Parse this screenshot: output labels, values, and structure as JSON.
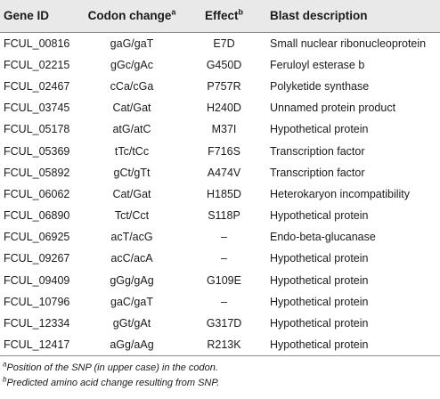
{
  "header": {
    "gene_id": "Gene ID",
    "codon_change": "Codon change",
    "codon_change_sup": "a",
    "effect": "Effect",
    "effect_sup": "b",
    "blast_description": "Blast description"
  },
  "rows": [
    {
      "gene_id": "FCUL_00816",
      "codon": "gaG/gaT",
      "effect": "E7D",
      "blast": "Small nuclear ribonucleoprotein"
    },
    {
      "gene_id": "FCUL_02215",
      "codon": "gGc/gAc",
      "effect": "G450D",
      "blast": "Feruloyl esterase b"
    },
    {
      "gene_id": "FCUL_02467",
      "codon": "cCa/cGa",
      "effect": "P757R",
      "blast": "Polyketide synthase"
    },
    {
      "gene_id": "FCUL_03745",
      "codon": "Cat/Gat",
      "effect": "H240D",
      "blast": "Unnamed protein product"
    },
    {
      "gene_id": "FCUL_05178",
      "codon": "atG/atC",
      "effect": "M37I",
      "blast": "Hypothetical protein"
    },
    {
      "gene_id": "FCUL_05369",
      "codon": "tTc/tCc",
      "effect": "F716S",
      "blast": "Transcription factor"
    },
    {
      "gene_id": "FCUL_05892",
      "codon": "gCt/gTt",
      "effect": "A474V",
      "blast": "Transcription factor"
    },
    {
      "gene_id": "FCUL_06062",
      "codon": "Cat/Gat",
      "effect": "H185D",
      "blast": "Heterokaryon incompatibility"
    },
    {
      "gene_id": "FCUL_06890",
      "codon": "Tct/Cct",
      "effect": "S118P",
      "blast": "Hypothetical protein"
    },
    {
      "gene_id": "FCUL_06925",
      "codon": "acT/acG",
      "effect": "–",
      "blast": "Endo-beta-glucanase"
    },
    {
      "gene_id": "FCUL_09267",
      "codon": "acC/acA",
      "effect": "–",
      "blast": "Hypothetical protein"
    },
    {
      "gene_id": "FCUL_09409",
      "codon": "gGg/gAg",
      "effect": "G109E",
      "blast": "Hypothetical protein"
    },
    {
      "gene_id": "FCUL_10796",
      "codon": "gaC/gaT",
      "effect": "–",
      "blast": "Hypothetical protein"
    },
    {
      "gene_id": "FCUL_12334",
      "codon": "gGt/gAt",
      "effect": "G317D",
      "blast": "Hypothetical protein"
    },
    {
      "gene_id": "FCUL_12417",
      "codon": "aGg/aAg",
      "effect": "R213K",
      "blast": "Hypothetical protein"
    }
  ],
  "footnotes": [
    {
      "marker": "a",
      "text": "Position of the SNP (in upper case) in the codon."
    },
    {
      "marker": "b",
      "text": "Predicted amino acid change resulting from SNP."
    }
  ]
}
